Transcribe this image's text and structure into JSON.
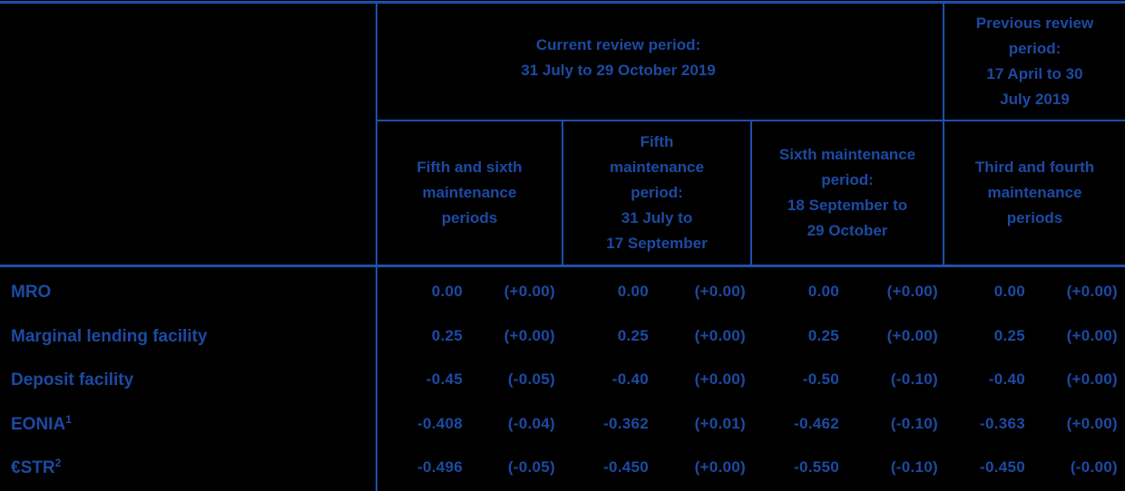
{
  "colors": {
    "background": "#000000",
    "text_blue": "#1c4aa3",
    "border_blue": "#1b50ae"
  },
  "table": {
    "header": {
      "current": {
        "title": "Current review period:\n31 July to 29 October 2019"
      },
      "previous": {
        "title": "Previous review\nperiod:\n17 April to 30\nJuly 2019"
      },
      "subcolumns": [
        {
          "title": "Fifth and sixth\nmaintenance\nperiods"
        },
        {
          "title": "Fifth\nmaintenance\nperiod:\n31 July to\n17 September"
        },
        {
          "title": "Sixth maintenance\nperiod:\n18 September to\n29 October"
        },
        {
          "title": "Third and fourth\nmaintenance\nperiods"
        }
      ]
    },
    "rows": [
      {
        "label": "MRO",
        "sup": "",
        "cells": [
          {
            "rate": "0.00",
            "change": "(+0.00)"
          },
          {
            "rate": "0.00",
            "change": "(+0.00)"
          },
          {
            "rate": "0.00",
            "change": "(+0.00)"
          },
          {
            "rate": "0.00",
            "change": "(+0.00)"
          }
        ]
      },
      {
        "label": "Marginal lending facility",
        "sup": "",
        "cells": [
          {
            "rate": "0.25",
            "change": "(+0.00)"
          },
          {
            "rate": "0.25",
            "change": "(+0.00)"
          },
          {
            "rate": "0.25",
            "change": "(+0.00)"
          },
          {
            "rate": "0.25",
            "change": "(+0.00)"
          }
        ]
      },
      {
        "label": "Deposit facility",
        "sup": "",
        "cells": [
          {
            "rate": "-0.45",
            "change": "(-0.05)"
          },
          {
            "rate": "-0.40",
            "change": "(+0.00)"
          },
          {
            "rate": "-0.50",
            "change": "(-0.10)"
          },
          {
            "rate": "-0.40",
            "change": "(+0.00)"
          }
        ]
      },
      {
        "label": "EONIA",
        "sup": "1",
        "cells": [
          {
            "rate": "-0.408",
            "change": "(-0.04)"
          },
          {
            "rate": "-0.362",
            "change": "(+0.01)"
          },
          {
            "rate": "-0.462",
            "change": "(-0.10)"
          },
          {
            "rate": "-0.363",
            "change": "(+0.00)"
          }
        ]
      },
      {
        "label": "€STR",
        "sup": "2",
        "cells": [
          {
            "rate": "-0.496",
            "change": "(-0.05)"
          },
          {
            "rate": "-0.450",
            "change": "(+0.00)"
          },
          {
            "rate": "-0.550",
            "change": "(-0.10)"
          },
          {
            "rate": "-0.450",
            "change": "(-0.00)"
          }
        ]
      }
    ]
  }
}
